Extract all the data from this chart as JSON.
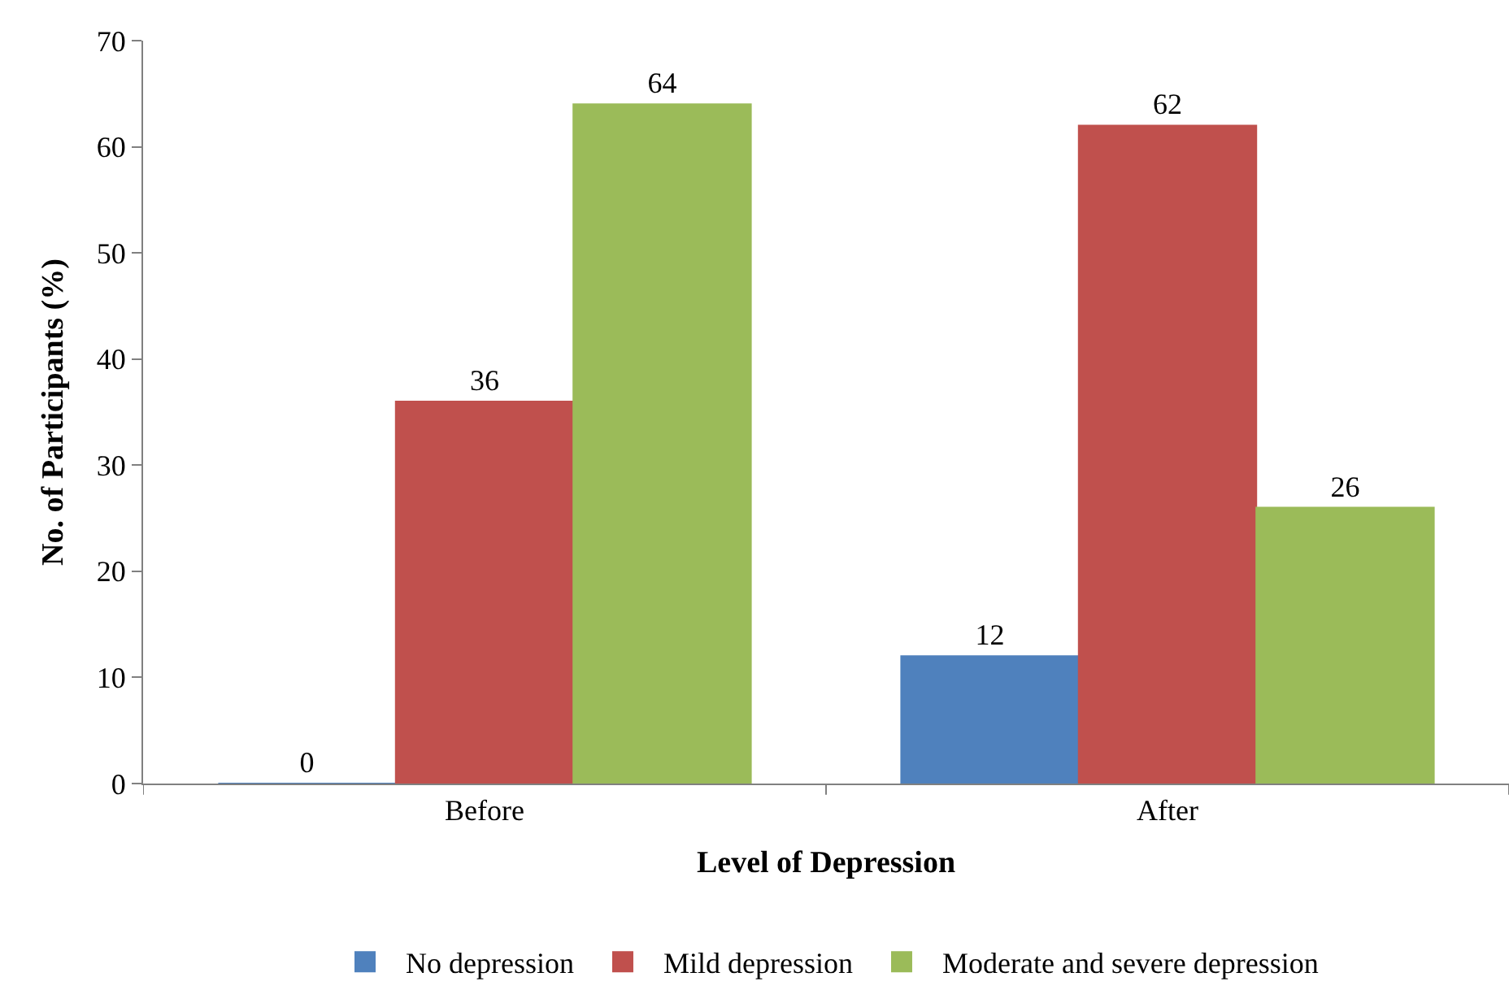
{
  "chart_data": {
    "type": "bar",
    "xlabel": "Level of Depression",
    "ylabel": "No. of Participants (%)",
    "categories": [
      "Before",
      "After"
    ],
    "series": [
      {
        "name": "No depression",
        "color": "#4f81bd",
        "values": [
          0,
          12
        ]
      },
      {
        "name": "Mild depression",
        "color": "#c0504d",
        "values": [
          36,
          62
        ]
      },
      {
        "name": "Moderate and severe depression",
        "color": "#9bbb59",
        "values": [
          64,
          26
        ]
      }
    ],
    "ylim": [
      0,
      70
    ],
    "yticks": [
      0,
      10,
      20,
      30,
      40,
      50,
      60,
      70
    ],
    "data_labels": true,
    "legend": "bottom"
  }
}
